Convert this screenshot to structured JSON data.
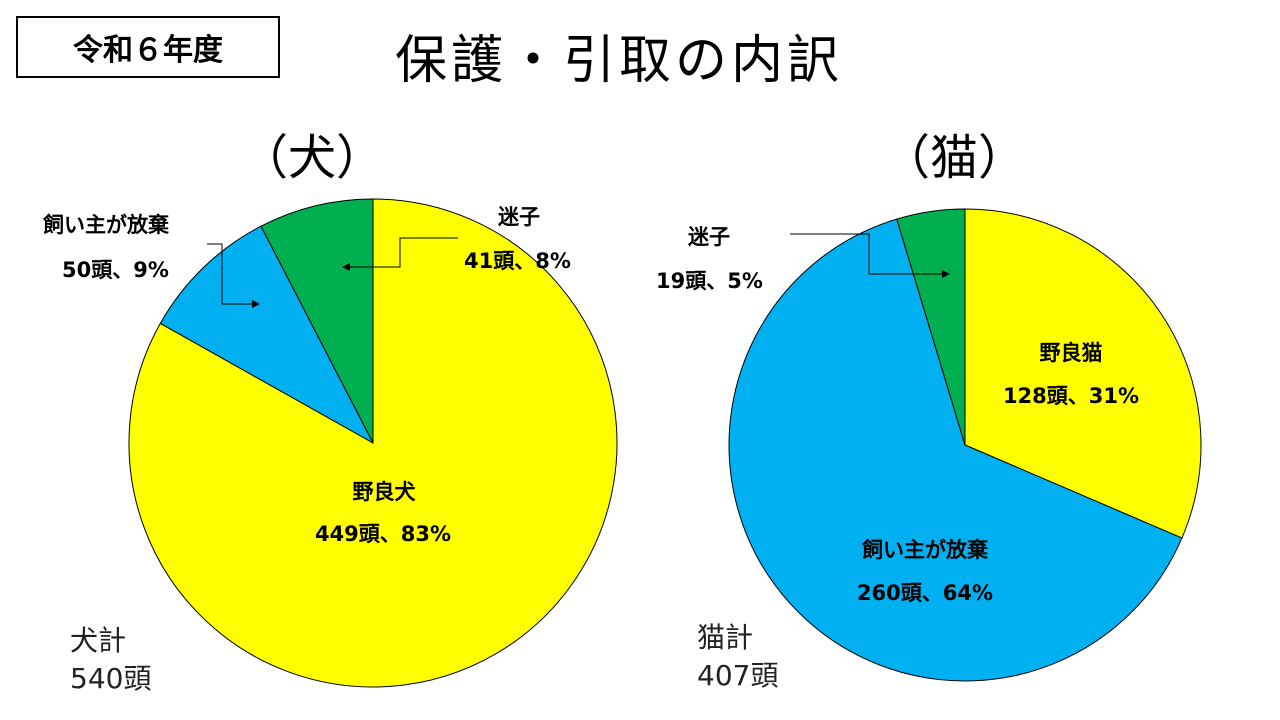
{
  "header": {
    "year_label": "令和６年度",
    "title": "保護・引取の内訳"
  },
  "colors": {
    "stray": "#ffff00",
    "abandoned": "#00b0f0",
    "lost": "#00b050"
  },
  "chart_data": [
    {
      "type": "pie",
      "title": "（犬）",
      "total_label": "犬計",
      "total_value": "540頭",
      "slices": [
        {
          "key": "lost",
          "name": "迷子",
          "value": 41,
          "label": "41頭、8%",
          "color": "#00b050"
        },
        {
          "key": "abandoned",
          "name": "飼い主が放棄",
          "value": 50,
          "label": "50頭、9%",
          "color": "#00b0f0"
        },
        {
          "key": "stray",
          "name": "野良犬",
          "value": 449,
          "label": "449頭、83%",
          "color": "#ffff00"
        }
      ]
    },
    {
      "type": "pie",
      "title": "（猫）",
      "total_label": "猫計",
      "total_value": "407頭",
      "slices": [
        {
          "key": "stray",
          "name": "野良猫",
          "value": 128,
          "label": "128頭、31%",
          "color": "#ffff00"
        },
        {
          "key": "abandoned",
          "name": "飼い主が放棄",
          "value": 260,
          "label": "260頭、64%",
          "color": "#00b0f0"
        },
        {
          "key": "lost",
          "name": "迷子",
          "value": 19,
          "label": "19頭、5%",
          "color": "#00b050"
        }
      ]
    }
  ]
}
